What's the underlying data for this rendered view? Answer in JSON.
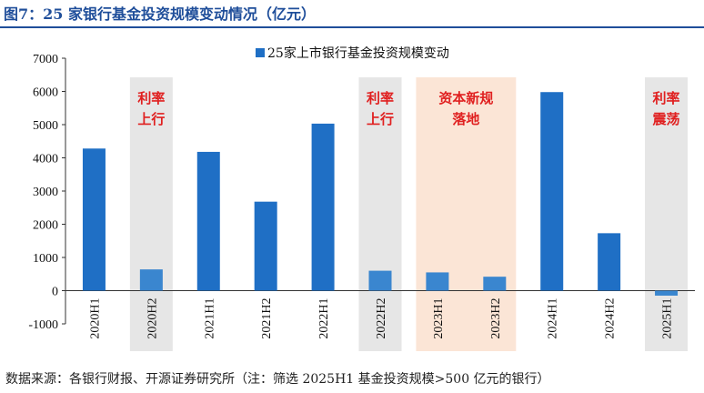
{
  "title": "图7：25 家银行基金投资规模变动情况（亿元）",
  "source": "数据来源：各银行财报、开源证券研究所（注：筛选 2025H1 基金投资规模>500 亿元的银行）",
  "chart_data": {
    "type": "bar",
    "categories": [
      "2020H1",
      "2020H2",
      "2021H1",
      "2021H2",
      "2022H1",
      "2022H2",
      "2023H1",
      "2023H2",
      "2024H1",
      "2024H2",
      "2025H1"
    ],
    "series": [
      {
        "name": "25家上市银行基金投资规模变动",
        "values": [
          4280,
          640,
          4180,
          2680,
          5030,
          600,
          550,
          420,
          5980,
          1730,
          -150
        ]
      }
    ],
    "y_ticks": [
      -1000,
      0,
      1000,
      2000,
      3000,
      4000,
      5000,
      6000,
      7000
    ],
    "ylim": [
      -1000,
      7000
    ],
    "colors": {
      "bar_primary": "#1f6fc5",
      "bar_highlight": "#3a86cf",
      "band_gray": "#e6e6e6",
      "band_peach": "#fbe5d6",
      "annotation": "#e02020"
    },
    "highlight_indices": [
      1,
      5,
      6,
      7,
      10
    ],
    "shaded_regions": [
      {
        "from": 1,
        "to": 1,
        "color": "gray",
        "label_lines": [
          "利率",
          "上行"
        ]
      },
      {
        "from": 5,
        "to": 5,
        "color": "gray",
        "label_lines": [
          "利率",
          "上行"
        ]
      },
      {
        "from": 6,
        "to": 7,
        "color": "peach",
        "label_lines": [
          "资本新规",
          "落地"
        ]
      },
      {
        "from": 10,
        "to": 10,
        "color": "gray",
        "label_lines": [
          "利率",
          "震荡"
        ]
      }
    ],
    "legend_position": "top"
  }
}
